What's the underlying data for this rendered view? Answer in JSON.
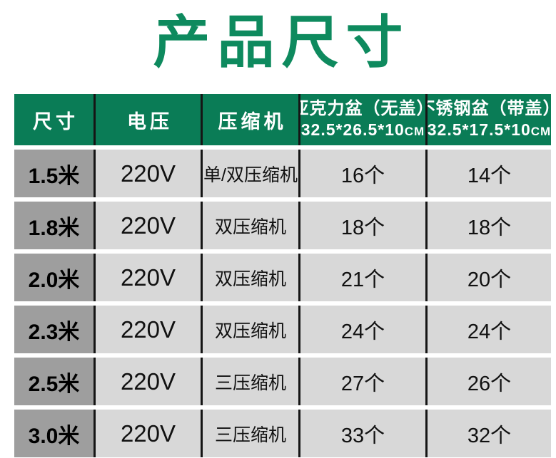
{
  "title": "产品尺寸",
  "colors": {
    "title_green": "#0e8a5e",
    "header_green": "#0a7c56",
    "size_column_gray": "#9e9e9e",
    "cell_gray": "#d8d8d8",
    "separator_black": "#151515"
  },
  "table": {
    "headers": {
      "size": "尺寸",
      "voltage": "电压",
      "compressor": "压缩机",
      "acrylic": {
        "name": "亚克力盆（无盖）",
        "dims": "32.5*26.5*10",
        "unit": "CM"
      },
      "stainless": {
        "name": "不锈钢盆（带盖）",
        "dims": "32.5*17.5*10",
        "unit": "CM"
      }
    },
    "rows": [
      {
        "size": "1.5米",
        "voltage": "220V",
        "compressor": "单/双压缩机",
        "acrylic": "16个",
        "stainless": "14个"
      },
      {
        "size": "1.8米",
        "voltage": "220V",
        "compressor": "双压缩机",
        "acrylic": "18个",
        "stainless": "18个"
      },
      {
        "size": "2.0米",
        "voltage": "220V",
        "compressor": "双压缩机",
        "acrylic": "21个",
        "stainless": "20个"
      },
      {
        "size": "2.3米",
        "voltage": "220V",
        "compressor": "双压缩机",
        "acrylic": "24个",
        "stainless": "24个"
      },
      {
        "size": "2.5米",
        "voltage": "220V",
        "compressor": "三压缩机",
        "acrylic": "27个",
        "stainless": "26个"
      },
      {
        "size": "3.0米",
        "voltage": "220V",
        "compressor": "三压缩机",
        "acrylic": "33个",
        "stainless": "32个"
      }
    ]
  }
}
